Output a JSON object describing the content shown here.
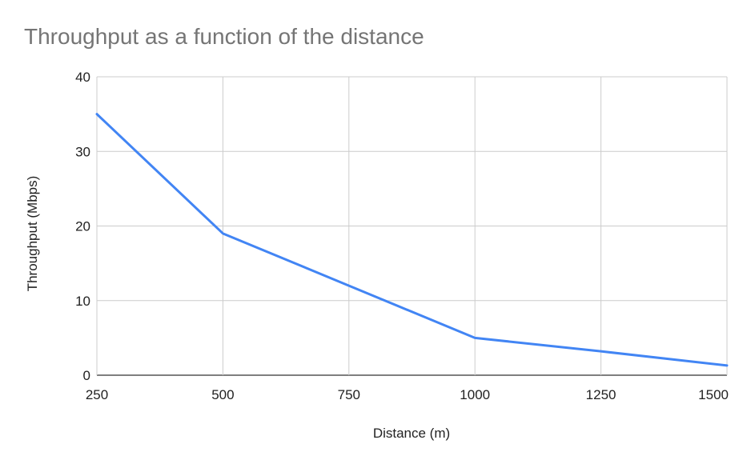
{
  "chart_data": {
    "type": "line",
    "title": "Throughput as a function of the distance",
    "xlabel": "Distance (m)",
    "ylabel": "Throughput (Mbps)",
    "x": [
      250,
      500,
      750,
      1000,
      1250,
      1500
    ],
    "xlim": [
      250,
      1500
    ],
    "ylim": [
      0,
      40
    ],
    "x_ticks": [
      "250",
      "500",
      "750",
      "1000",
      "1250",
      "1500"
    ],
    "y_ticks": [
      "0",
      "10",
      "20",
      "30",
      "40"
    ],
    "grid": true,
    "legend": "none",
    "series": [
      {
        "values": [
          35,
          19,
          12,
          5,
          3.2,
          1.3
        ],
        "color": "#4285f4"
      }
    ]
  }
}
